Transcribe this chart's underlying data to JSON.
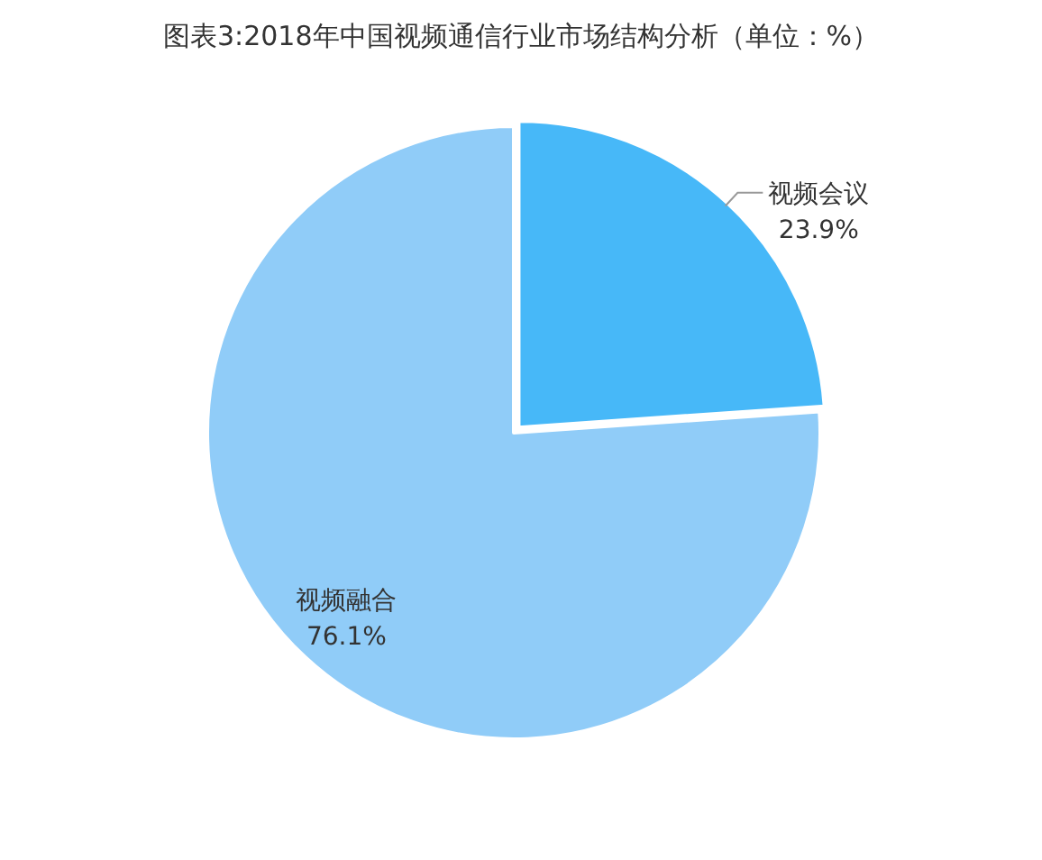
{
  "chart_data": {
    "type": "pie",
    "title": "图表3:2018年中国视频通信行业市场结构分析（单位：%）",
    "categories": [
      "视频会议",
      "视频融合"
    ],
    "values": [
      23.9,
      76.1
    ],
    "colors": [
      "#47b8f8",
      "#90ccf8"
    ],
    "value_labels": [
      "23.9%",
      "76.1%"
    ]
  }
}
